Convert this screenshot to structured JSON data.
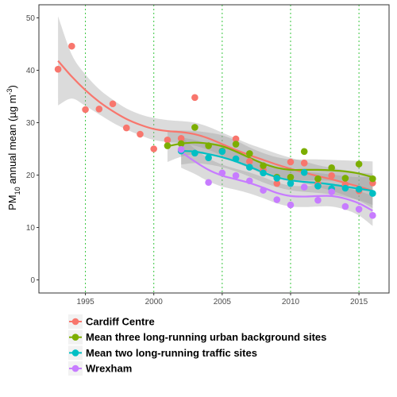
{
  "chart_data": {
    "type": "scatter",
    "title": "",
    "xlabel": "",
    "ylabel_main": "PM",
    "ylabel_sub": "10",
    "ylabel_mid": " annual mean (µg m",
    "ylabel_sup": "-3",
    "ylabel_end": ")",
    "xlim": [
      1991.6,
      2017.2
    ],
    "ylim": [
      -2.5,
      52.5
    ],
    "x_ticks": [
      1995,
      2000,
      2005,
      2010,
      2015
    ],
    "x_tick_labels": [
      "1995",
      "2000",
      "2005",
      "2010",
      "2015"
    ],
    "y_ticks": [
      0,
      10,
      20,
      30,
      40,
      50
    ],
    "y_tick_labels": [
      "0",
      "10",
      "20",
      "30",
      "40",
      "50"
    ],
    "vlines": [
      1995,
      2000,
      2005,
      2010,
      2015
    ],
    "vline_color": "#39c63f",
    "grid": false,
    "smoothing": "loess with grey confidence band",
    "legend_position": "bottom",
    "series": [
      {
        "name": "Cardiff Centre",
        "color": "#f8766d",
        "points": [
          [
            1993,
            40.2
          ],
          [
            1994,
            44.6
          ],
          [
            1995,
            32.5
          ],
          [
            1996,
            32.6
          ],
          [
            1997,
            33.6
          ],
          [
            1998,
            29.0
          ],
          [
            1999,
            27.8
          ],
          [
            2000,
            25.0
          ],
          [
            2001,
            26.7
          ],
          [
            2002,
            27.0
          ],
          [
            2003,
            34.8
          ],
          [
            2006,
            26.9
          ],
          [
            2007,
            22.6
          ],
          [
            2008,
            21.0
          ],
          [
            2009,
            18.4
          ],
          [
            2010,
            22.5
          ],
          [
            2011,
            22.3
          ],
          [
            2012,
            18.3
          ],
          [
            2013,
            19.9
          ],
          [
            2014,
            18.2
          ],
          [
            2015,
            17.0
          ],
          [
            2016,
            18.5
          ]
        ],
        "smooth": [
          [
            1993,
            41.8
          ],
          [
            1994,
            38.8
          ],
          [
            1995,
            36.2
          ],
          [
            1996,
            34.0
          ],
          [
            1997,
            32.2
          ],
          [
            1998,
            30.7
          ],
          [
            1999,
            29.6
          ],
          [
            2000,
            28.8
          ],
          [
            2001,
            28.4
          ],
          [
            2002,
            28.2
          ],
          [
            2003,
            27.8
          ],
          [
            2004,
            27.0
          ],
          [
            2005,
            25.9
          ],
          [
            2006,
            24.8
          ],
          [
            2007,
            23.8
          ],
          [
            2008,
            22.9
          ],
          [
            2009,
            22.0
          ],
          [
            2010,
            21.2
          ],
          [
            2011,
            20.5
          ],
          [
            2012,
            19.8
          ],
          [
            2013,
            19.2
          ],
          [
            2014,
            18.5
          ],
          [
            2015,
            17.8
          ],
          [
            2016,
            17.0
          ]
        ],
        "band": [
          8.5,
          4.2,
          3.0,
          2.4,
          2.2,
          2.0,
          2.0,
          2.1,
          2.1,
          2.1,
          2.2,
          2.2,
          2.2,
          2.2,
          2.1,
          2.1,
          2.1,
          2.1,
          2.1,
          2.1,
          2.2,
          2.4,
          2.7,
          3.3
        ]
      },
      {
        "name": "Mean three long-running urban background sites",
        "color": "#7cae00",
        "points": [
          [
            2001,
            25.6
          ],
          [
            2002,
            26.0
          ],
          [
            2003,
            29.1
          ],
          [
            2004,
            25.6
          ],
          [
            2005,
            24.6
          ],
          [
            2006,
            25.9
          ],
          [
            2007,
            24.1
          ],
          [
            2008,
            21.8
          ],
          [
            2009,
            19.6
          ],
          [
            2010,
            19.6
          ],
          [
            2011,
            24.5
          ],
          [
            2012,
            19.3
          ],
          [
            2013,
            21.4
          ],
          [
            2014,
            19.4
          ],
          [
            2015,
            22.1
          ],
          [
            2016,
            19.3
          ]
        ],
        "smooth": [
          [
            2001,
            25.5
          ],
          [
            2002,
            26.0
          ],
          [
            2003,
            26.2
          ],
          [
            2004,
            26.0
          ],
          [
            2005,
            25.5
          ],
          [
            2006,
            24.5
          ],
          [
            2007,
            23.3
          ],
          [
            2008,
            22.2
          ],
          [
            2009,
            21.4
          ],
          [
            2010,
            21.0
          ],
          [
            2011,
            21.0
          ],
          [
            2012,
            21.0
          ],
          [
            2013,
            20.9
          ],
          [
            2014,
            20.7
          ],
          [
            2015,
            20.3
          ],
          [
            2016,
            19.6
          ]
        ],
        "band": [
          3.0,
          2.5,
          2.2,
          2.1,
          2.1,
          2.1,
          2.0,
          2.0,
          2.0,
          2.0,
          2.0,
          2.0,
          2.0,
          2.1,
          2.4,
          3.0
        ]
      },
      {
        "name": "Mean two long-running traffic sites",
        "color": "#00bfc4",
        "points": [
          [
            2002,
            24.6
          ],
          [
            2003,
            24.2
          ],
          [
            2004,
            23.3
          ],
          [
            2005,
            24.5
          ],
          [
            2006,
            23.1
          ],
          [
            2007,
            21.5
          ],
          [
            2008,
            20.4
          ],
          [
            2009,
            19.4
          ],
          [
            2010,
            18.4
          ],
          [
            2011,
            20.5
          ],
          [
            2012,
            17.9
          ],
          [
            2013,
            17.4
          ],
          [
            2014,
            17.5
          ],
          [
            2015,
            17.3
          ],
          [
            2016,
            16.5
          ]
        ],
        "smooth": [
          [
            2002,
            24.6
          ],
          [
            2003,
            24.5
          ],
          [
            2004,
            24.0
          ],
          [
            2005,
            23.4
          ],
          [
            2006,
            22.6
          ],
          [
            2007,
            21.6
          ],
          [
            2008,
            20.5
          ],
          [
            2009,
            19.6
          ],
          [
            2010,
            19.0
          ],
          [
            2011,
            18.7
          ],
          [
            2012,
            18.5
          ],
          [
            2013,
            18.2
          ],
          [
            2014,
            17.8
          ],
          [
            2015,
            17.4
          ],
          [
            2016,
            17.0
          ]
        ],
        "band": [
          2.6,
          2.2,
          2.0,
          1.9,
          1.9,
          1.9,
          1.9,
          1.9,
          1.9,
          1.9,
          1.9,
          1.9,
          2.0,
          2.2,
          2.7
        ]
      },
      {
        "name": "Wrexham",
        "color": "#c77cff",
        "points": [
          [
            2002,
            24.9
          ],
          [
            2004,
            18.6
          ],
          [
            2005,
            20.4
          ],
          [
            2006,
            19.9
          ],
          [
            2007,
            18.9
          ],
          [
            2008,
            17.1
          ],
          [
            2009,
            15.3
          ],
          [
            2010,
            14.3
          ],
          [
            2011,
            17.7
          ],
          [
            2012,
            15.2
          ],
          [
            2013,
            16.8
          ],
          [
            2014,
            14.0
          ],
          [
            2015,
            13.5
          ],
          [
            2016,
            12.3
          ]
        ],
        "smooth": [
          [
            2002,
            24.4
          ],
          [
            2003,
            22.6
          ],
          [
            2004,
            21.0
          ],
          [
            2005,
            19.9
          ],
          [
            2006,
            19.2
          ],
          [
            2007,
            18.5
          ],
          [
            2008,
            17.6
          ],
          [
            2009,
            16.6
          ],
          [
            2010,
            16.0
          ],
          [
            2011,
            15.9
          ],
          [
            2012,
            16.0
          ],
          [
            2013,
            16.0
          ],
          [
            2014,
            15.5
          ],
          [
            2015,
            14.6
          ],
          [
            2016,
            13.2
          ]
        ],
        "band": [
          3.0,
          2.4,
          2.2,
          2.1,
          2.0,
          2.0,
          2.0,
          2.0,
          2.0,
          2.0,
          2.0,
          2.0,
          2.1,
          2.3,
          2.9
        ]
      }
    ]
  },
  "style": {
    "band_fill": "#999999",
    "tick_color": "#333333",
    "legend_key_bg": "#f2f2f2"
  }
}
